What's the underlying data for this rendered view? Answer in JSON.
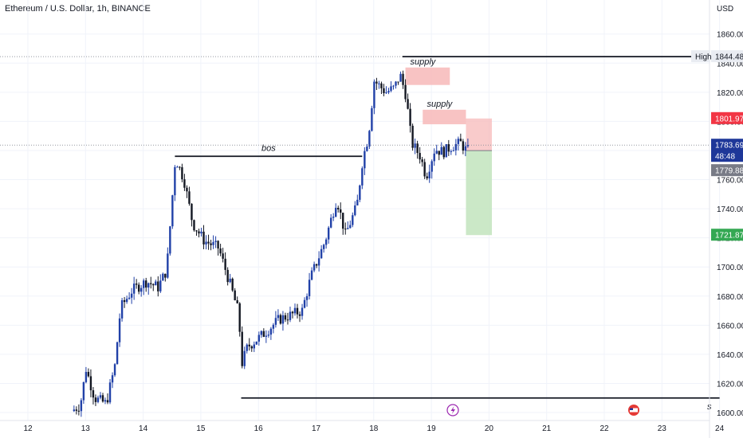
{
  "chart_data": {
    "type": "candlestick",
    "title": "Ethereum / U.S. Dollar, 1h, BINANCE",
    "currency": "USD",
    "ylim": [
      1597,
      1877
    ],
    "xlim": [
      12,
      24
    ],
    "y_ticks": [
      1600,
      1620,
      1640,
      1660,
      1680,
      1700,
      1720,
      1740,
      1760,
      1780,
      1800,
      1820,
      1840,
      1860
    ],
    "x_ticks": [
      "12",
      "13",
      "14",
      "15",
      "16",
      "17",
      "18",
      "19",
      "20",
      "21",
      "22",
      "23",
      "24"
    ],
    "colors": {
      "up": "#2141a8",
      "down": "#131722",
      "supply": "#f7b9b9",
      "target": "#c5e5c1",
      "grid": "#f0f3fa"
    },
    "price_path": [
      [
        12.8,
        1601
      ],
      [
        12.95,
        1605
      ],
      [
        13.05,
        1630
      ],
      [
        13.2,
        1610
      ],
      [
        13.4,
        1606
      ],
      [
        13.55,
        1632
      ],
      [
        13.65,
        1672
      ],
      [
        13.85,
        1684
      ],
      [
        14.1,
        1690
      ],
      [
        14.3,
        1686
      ],
      [
        14.45,
        1698
      ],
      [
        14.6,
        1775
      ],
      [
        14.75,
        1760
      ],
      [
        14.9,
        1730
      ],
      [
        15.1,
        1718
      ],
      [
        15.35,
        1713
      ],
      [
        15.55,
        1688
      ],
      [
        15.7,
        1668
      ],
      [
        15.75,
        1633
      ],
      [
        15.85,
        1645
      ],
      [
        16.1,
        1653
      ],
      [
        16.4,
        1664
      ],
      [
        16.8,
        1670
      ],
      [
        16.95,
        1693
      ],
      [
        17.2,
        1718
      ],
      [
        17.4,
        1747
      ],
      [
        17.55,
        1722
      ],
      [
        17.75,
        1742
      ],
      [
        17.85,
        1774
      ],
      [
        17.95,
        1790
      ],
      [
        18.05,
        1828
      ],
      [
        18.25,
        1820
      ],
      [
        18.4,
        1823
      ],
      [
        18.5,
        1832
      ],
      [
        18.6,
        1818
      ],
      [
        18.7,
        1785
      ],
      [
        18.85,
        1776
      ],
      [
        18.95,
        1762
      ],
      [
        19.1,
        1781
      ],
      [
        19.25,
        1779
      ],
      [
        19.4,
        1783
      ],
      [
        19.55,
        1785
      ],
      [
        19.65,
        1780
      ]
    ],
    "annotations": [
      {
        "label": "High",
        "price": "1844.48",
        "type": "level"
      },
      {
        "label": "bos",
        "price": 1776,
        "x_start": 14.55,
        "x_end": 17.8
      },
      {
        "label": "supply",
        "zone_top": 1837,
        "zone_bottom": 1825,
        "x_start": 18.55,
        "x_end": 19.32
      },
      {
        "label": "supply",
        "zone_top": 1808,
        "zone_bottom": 1798,
        "x_start": 18.85,
        "x_end": 19.6
      },
      {
        "label": "",
        "price": 1610,
        "x_start": 15.7,
        "x_end": 24
      }
    ],
    "position": {
      "entry": 1779.88,
      "stop": 1801.97,
      "target": 1721.87,
      "x_start": 19.6,
      "x_end": 20.05
    },
    "price_tags": [
      {
        "value": "1844.48",
        "style": "high"
      },
      {
        "value": "1801.97",
        "style": "stop"
      },
      {
        "value": "1783.69",
        "style": "last"
      },
      {
        "value": "48:48",
        "style": "countdown"
      },
      {
        "value": "1779.88",
        "style": "entry"
      },
      {
        "value": "1721.87",
        "style": "target"
      }
    ],
    "high_label": "High",
    "right_edge_letter": "s"
  }
}
